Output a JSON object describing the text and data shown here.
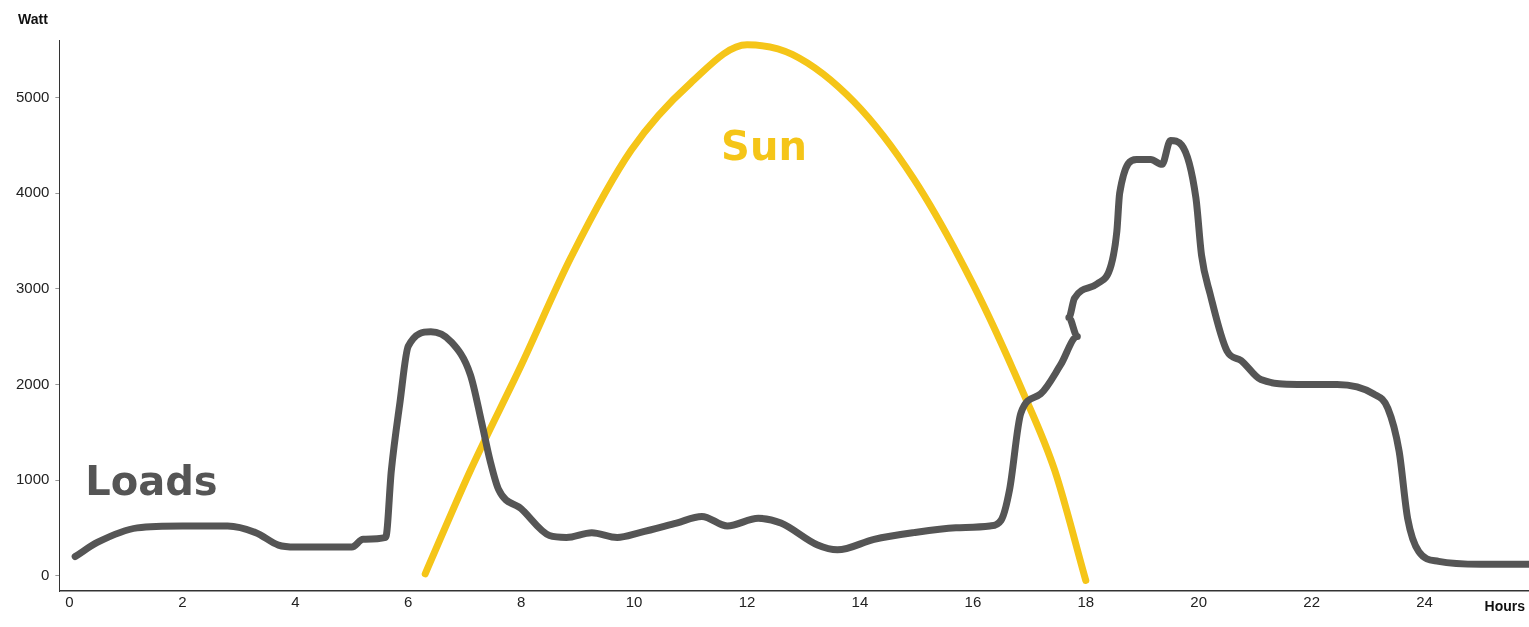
{
  "chart_data": {
    "type": "line",
    "xlabel": "Hours",
    "ylabel": "Watt",
    "xlim": [
      -0.18,
      25.85
    ],
    "ylim": [
      -160,
      5600
    ],
    "xticks": [
      0,
      2,
      4,
      6,
      8,
      10,
      12,
      14,
      16,
      18,
      20,
      22,
      24
    ],
    "yticks": [
      0,
      1000,
      2000,
      3000,
      4000,
      5000
    ],
    "grid": false,
    "legend": false,
    "marker": "none",
    "line_style": "solid",
    "series": [
      {
        "name": "Loads",
        "color": "#555555",
        "x": [
          0.1,
          0.5,
          1.2,
          2,
          2.8,
          3.3,
          3.7,
          4.0,
          5.0,
          5.2,
          5.6,
          5.7,
          5.85,
          6.0,
          6.4,
          6.75,
          7.1,
          7.3,
          7.45,
          7.6,
          8.0,
          8.5,
          8.8,
          9.25,
          9.7,
          10.1,
          10.75,
          11.2,
          11.65,
          12.2,
          12.6,
          13.25,
          13.6,
          14.25,
          14.95,
          15.7,
          16.3,
          16.5,
          16.65,
          16.85,
          17.2,
          17.55,
          17.85,
          17.7,
          17.8,
          18.2,
          18.45,
          18.55,
          18.6,
          18.9,
          19.15,
          19.35,
          19.5,
          19.7,
          19.95,
          20.05,
          20.2,
          20.5,
          20.75,
          21.1,
          21.75,
          22.45,
          23.1,
          23.35,
          23.55,
          23.7,
          23.9,
          24.25,
          25.0,
          25.85
        ],
        "values": [
          200,
          350,
          500,
          520,
          520,
          450,
          320,
          300,
          300,
          380,
          400,
          1100,
          1800,
          2400,
          2550,
          2450,
          2100,
          1600,
          1200,
          900,
          700,
          420,
          400,
          450,
          400,
          450,
          550,
          620,
          520,
          600,
          550,
          320,
          270,
          380,
          450,
          500,
          520,
          580,
          900,
          1700,
          1900,
          2200,
          2500,
          2700,
          2900,
          3050,
          3250,
          3600,
          4000,
          4350,
          4350,
          4300,
          4550,
          4500,
          3950,
          3350,
          2950,
          2350,
          2250,
          2050,
          2000,
          2000,
          1900,
          1750,
          1300,
          600,
          250,
          150,
          120,
          120
        ]
      },
      {
        "name": "Sun",
        "color": "#f5c518",
        "x": [
          6.3,
          7.1,
          8.0,
          8.9,
          9.95,
          11.0,
          12.0,
          12.8,
          13.9,
          14.95,
          16.0,
          16.9,
          17.45,
          18.0
        ],
        "values": [
          20,
          1100,
          2200,
          3350,
          4450,
          5150,
          5550,
          5450,
          4950,
          4150,
          3050,
          1900,
          1100,
          -50
        ]
      }
    ]
  }
}
